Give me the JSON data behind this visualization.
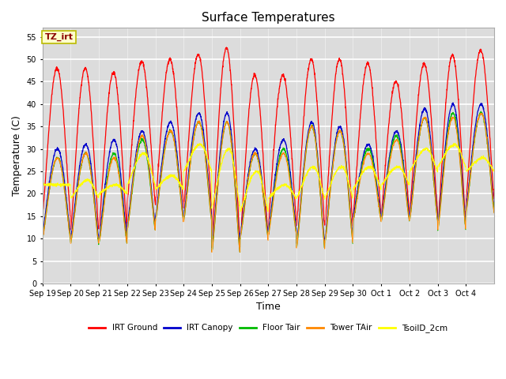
{
  "title": "Surface Temperatures",
  "ylabel": "Temperature (C)",
  "xlabel": "Time",
  "ylim": [
    0,
    57
  ],
  "yticks": [
    0,
    5,
    10,
    15,
    20,
    25,
    30,
    35,
    40,
    45,
    50,
    55
  ],
  "annotation_text": "TZ_irt",
  "annotation_color": "#8B0000",
  "annotation_bg": "#FFFFCC",
  "annotation_border": "#BBBB00",
  "series_colors": {
    "IRT Ground": "#FF0000",
    "IRT Canopy": "#0000CC",
    "Floor Tair": "#00BB00",
    "Tower TAir": "#FF8800",
    "TsoilD_2cm": "#FFFF00"
  },
  "plot_bg_color": "#DCDCDC",
  "n_days": 16,
  "day_labels": [
    "Sep 19",
    "Sep 20",
    "Sep 21",
    "Sep 22",
    "Sep 23",
    "Sep 24",
    "Sep 25",
    "Sep 26",
    "Sep 27",
    "Sep 28",
    "Sep 29",
    "Sep 30",
    "Oct 1",
    "Oct 2",
    "Oct 3",
    "Oct 4"
  ],
  "title_fontsize": 11,
  "label_fontsize": 9,
  "tick_fontsize": 7,
  "ground_peaks": [
    48,
    48,
    47,
    49.5,
    50,
    51,
    52.5,
    46.5,
    46.5,
    50,
    50,
    49,
    45,
    49,
    51,
    52
  ],
  "canopy_peaks": [
    30,
    31,
    32,
    34,
    36,
    38,
    38,
    30,
    32,
    36,
    35,
    31,
    34,
    39,
    40,
    40
  ],
  "floor_peaks": [
    28,
    29,
    29,
    32,
    34,
    36,
    36,
    29,
    30,
    35,
    34,
    30,
    33,
    37,
    38,
    38
  ],
  "tower_peaks": [
    28,
    29,
    28,
    33,
    34,
    36,
    36,
    29,
    29,
    35,
    34,
    29,
    32,
    37,
    37,
    38
  ],
  "tsoil_peaks": [
    22,
    23,
    22,
    29,
    24,
    31,
    30,
    25,
    22,
    26,
    26,
    26,
    26,
    30,
    31,
    28
  ],
  "ground_nights": [
    15,
    12,
    12,
    18,
    18,
    17,
    10,
    10,
    14,
    13,
    13,
    15,
    16,
    16,
    13,
    19
  ],
  "other_nights": [
    11,
    10,
    10,
    13,
    15,
    15,
    8,
    11,
    12,
    9,
    10,
    15,
    15,
    15,
    13,
    17
  ],
  "tsoil_nights": [
    22,
    19,
    20,
    22,
    21,
    25,
    17,
    16,
    19,
    19,
    19,
    21,
    22,
    25,
    26,
    25
  ]
}
